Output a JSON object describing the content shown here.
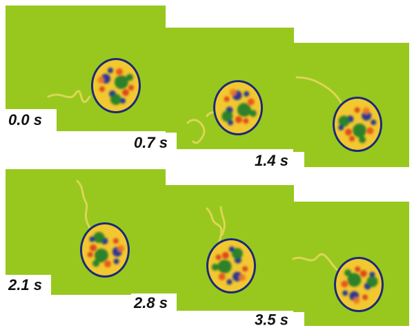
{
  "frames": [
    {
      "label": "0.0 s"
    },
    {
      "label": "0.7 s"
    },
    {
      "label": "1.4 s"
    },
    {
      "label": "2.1 s"
    },
    {
      "label": "2.8 s"
    },
    {
      "label": "3.5 s"
    }
  ]
}
